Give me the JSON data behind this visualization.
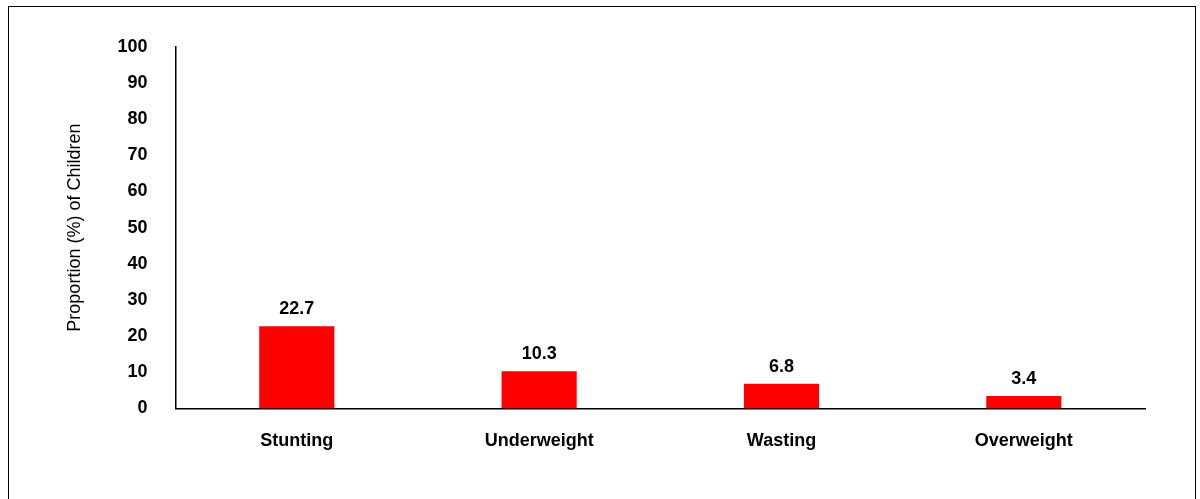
{
  "chart_data": {
    "type": "bar",
    "ylabel": "Proportion (%) of Children",
    "categories": [
      "Stunting",
      "Underweight",
      "Wasting",
      "Overweight"
    ],
    "values": [
      22.7,
      10.3,
      6.8,
      3.4
    ],
    "color": "#ff0000",
    "ylim": [
      0,
      100
    ],
    "yticks": [
      0,
      10,
      20,
      30,
      40,
      50,
      60,
      70,
      80,
      90,
      100
    ],
    "grid": false,
    "data_labels": true,
    "legend": false
  }
}
